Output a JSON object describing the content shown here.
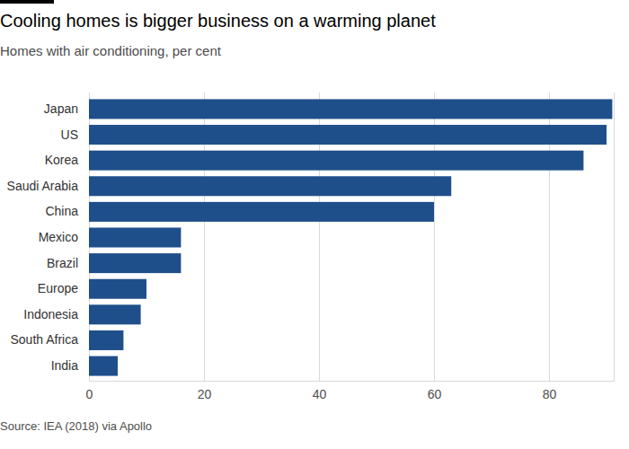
{
  "chart_data": {
    "type": "bar",
    "orientation": "horizontal",
    "title": "Cooling homes is bigger business on a warming planet",
    "subtitle": "Homes with air conditioning, per cent",
    "source": "Source: IEA (2018) via Apollo",
    "categories": [
      "Japan",
      "US",
      "Korea",
      "Saudi Arabia",
      "China",
      "Mexico",
      "Brazil",
      "Europe",
      "Indonesia",
      "South Africa",
      "India"
    ],
    "values": [
      91,
      90,
      86,
      63,
      60,
      16,
      16,
      10,
      9,
      6,
      5
    ],
    "color": "#1f4f8b",
    "xlim": [
      0,
      91.25
    ],
    "xticks": [
      0,
      20,
      40,
      60,
      80
    ],
    "grid": true
  }
}
